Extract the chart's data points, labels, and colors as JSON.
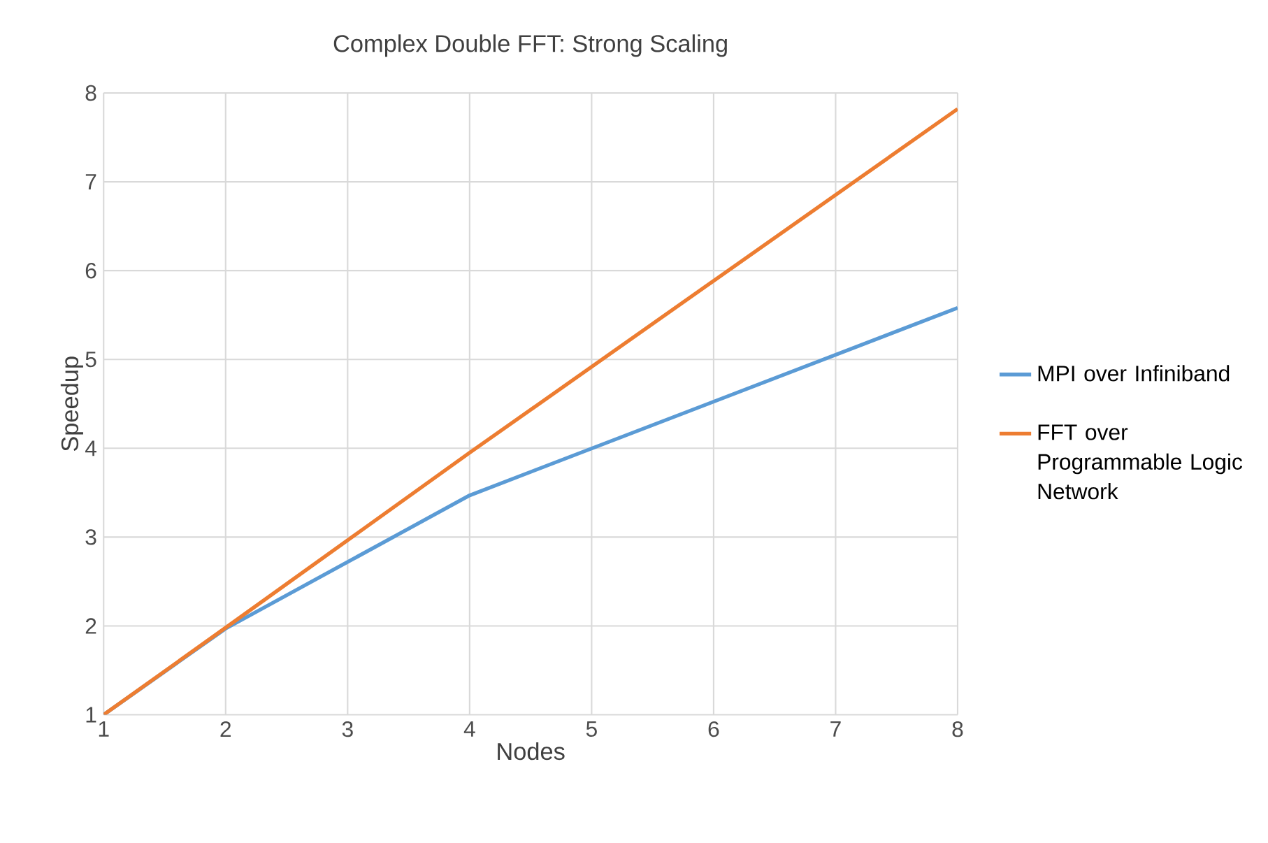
{
  "chart_data": {
    "type": "line",
    "title": "Complex Double FFT:  Strong Scaling",
    "xlabel": "Nodes",
    "ylabel": "Speedup",
    "x": [
      1,
      2,
      4,
      8
    ],
    "series": [
      {
        "name": "MPI over Infiniband",
        "color": "#5b9bd5",
        "values": [
          1,
          1.97,
          3.47,
          5.58
        ]
      },
      {
        "name": "FFT over Programmable Logic Network",
        "color": "#ed7d31",
        "values": [
          1,
          1.98,
          3.95,
          7.82
        ]
      }
    ],
    "xlim": [
      1,
      8
    ],
    "ylim": [
      1,
      8
    ],
    "xticks": [
      1,
      2,
      3,
      4,
      5,
      6,
      7,
      8
    ],
    "yticks": [
      1,
      2,
      3,
      4,
      5,
      6,
      7,
      8
    ],
    "grid": true,
    "legend": "right",
    "marker": "none",
    "line_style": "solid"
  }
}
